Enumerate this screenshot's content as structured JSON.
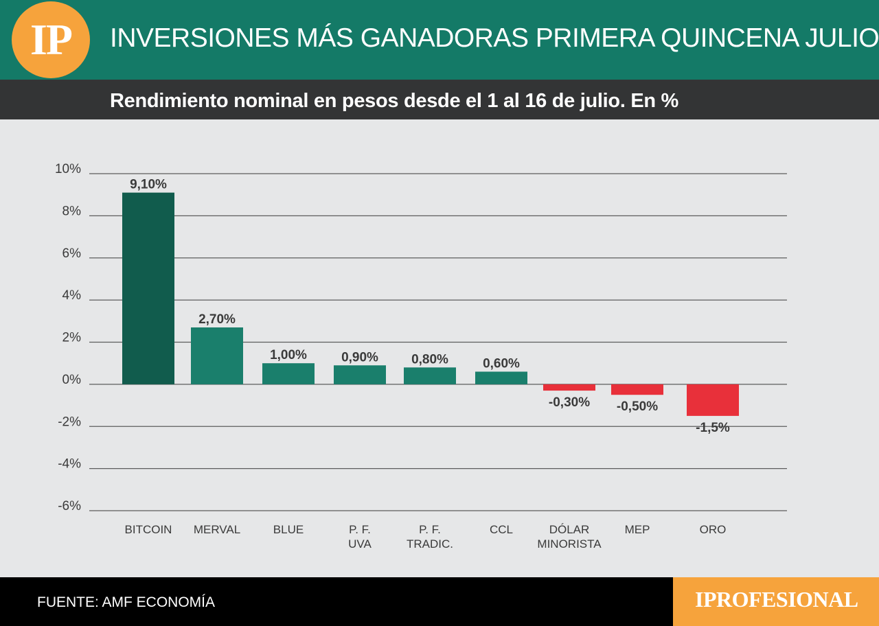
{
  "header": {
    "logo_text": "IP",
    "title": "INVERSIONES MÁS GANADORAS PRIMERA QUINCENA JULIO",
    "subtitle": "Rendimiento nominal en pesos desde el  1 al 16 de julio. En %"
  },
  "footer": {
    "source": "FUENTE: AMF ECONOMÍA",
    "brand": "IPROFESIONAL"
  },
  "colors": {
    "header_bg": "#147a67",
    "subbar_bg": "#333435",
    "background": "#e6e7e8",
    "accent_orange": "#f6a33c",
    "positive_bar": "#1a7f6c",
    "top_bar": "#115c4d",
    "negative_bar": "#e8303a"
  },
  "chart_data": {
    "type": "bar",
    "categories": [
      [
        "BITCOIN"
      ],
      [
        "MERVAL"
      ],
      [
        "BLUE"
      ],
      [
        "P. F.",
        "UVA"
      ],
      [
        "P. F.",
        "TRADIC."
      ],
      [
        "CCL"
      ],
      [
        "DÓLAR",
        "MINORISTA"
      ],
      [
        "MEP"
      ],
      [
        "ORO"
      ]
    ],
    "values": [
      9.1,
      2.7,
      1.0,
      0.9,
      0.8,
      0.6,
      -0.3,
      -0.5,
      -1.5
    ],
    "data_labels": [
      "9,10%",
      "2,70%",
      "1,00%",
      "0,90%",
      "0,80%",
      "0,60%",
      "-0,30%",
      "-0,50%",
      "-1,5%"
    ],
    "y_ticks": [
      10,
      8,
      6,
      4,
      2,
      0,
      -2,
      -4,
      -6
    ],
    "y_tick_labels": [
      "10%",
      "8%",
      "6%",
      "4%",
      "2%",
      "0%",
      "-2%",
      "-4%",
      "-6%"
    ],
    "ylim": [
      -6,
      10
    ],
    "grid": true
  }
}
